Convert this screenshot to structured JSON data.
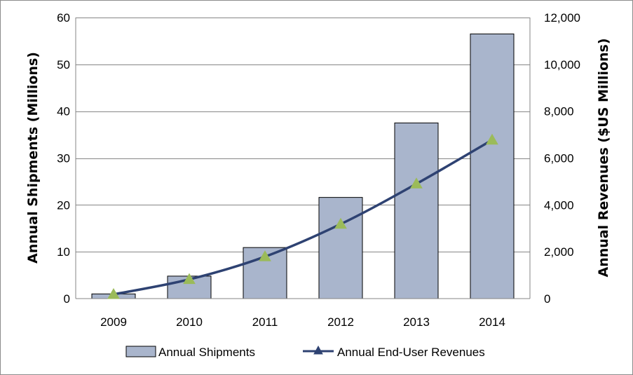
{
  "chart_data": {
    "type": "bar",
    "categories": [
      "2009",
      "2010",
      "2011",
      "2012",
      "2013",
      "2014"
    ],
    "series": [
      {
        "name": "Annual Shipments",
        "type": "bar",
        "axis": "left",
        "color": "#a9b5cc",
        "values": [
          1.0,
          4.8,
          10.9,
          21.6,
          37.5,
          56.5
        ]
      },
      {
        "name": "Annual End-User Revenues",
        "type": "line",
        "axis": "right",
        "color": "#2e4272",
        "marker_color": "#9bbb59",
        "values": [
          180,
          820,
          1790,
          3180,
          4900,
          6770
        ]
      }
    ],
    "ylabel": "Annual Shipments (Millions)",
    "y2label": "Annual Revenues ($US Millions)",
    "ylim": [
      0,
      60
    ],
    "y2lim": [
      0,
      12000
    ],
    "yticks": [
      "0",
      "10",
      "20",
      "30",
      "40",
      "50",
      "60"
    ],
    "y2ticks": [
      "0",
      "2,000",
      "4,000",
      "6,000",
      "8,000",
      "10,000",
      "12,000"
    ],
    "legend_position": "bottom"
  }
}
